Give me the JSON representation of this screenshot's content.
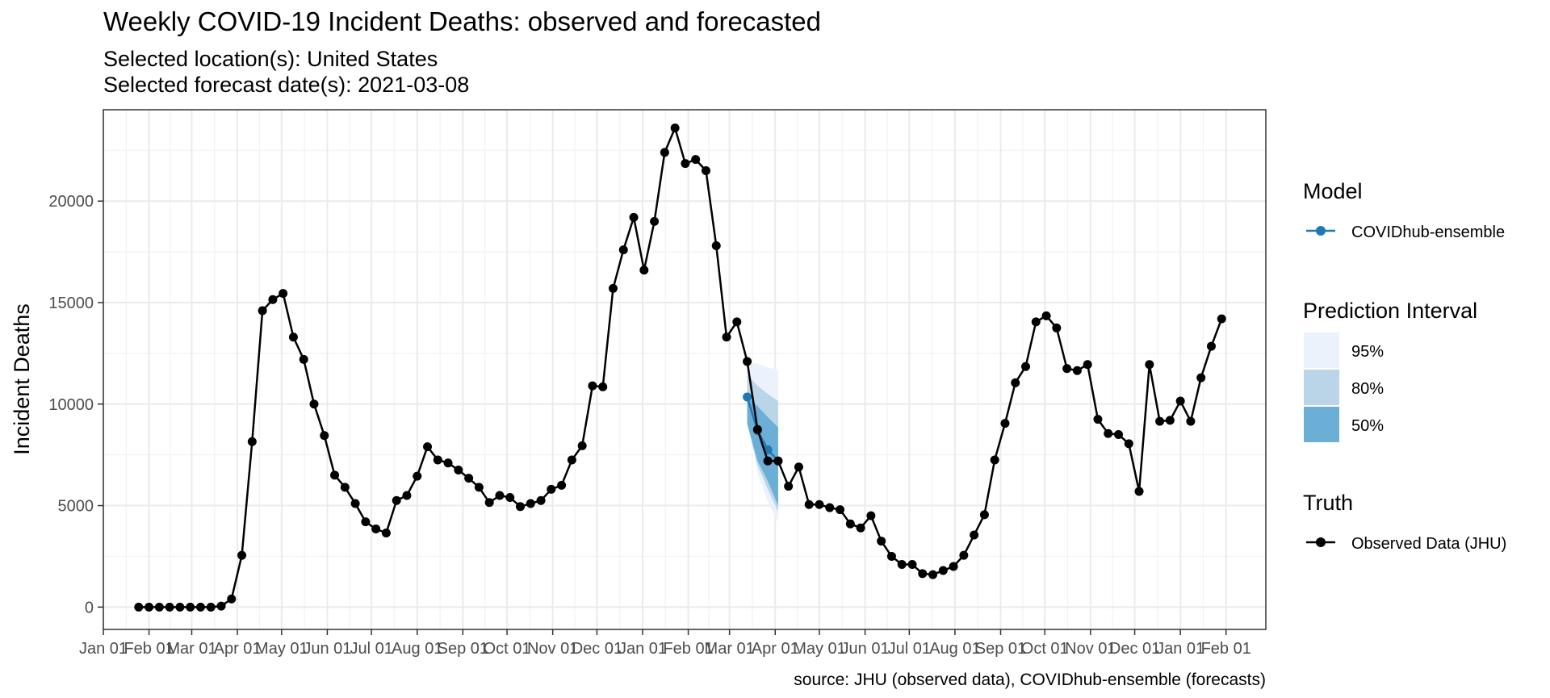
{
  "chart_data": {
    "type": "line",
    "title": "Weekly COVID-19 Incident Deaths: observed and forecasted",
    "subtitle_location": "Selected location(s): United States",
    "subtitle_date": "Selected forecast date(s): 2021-03-08",
    "ylabel": "Incident Deaths",
    "xlabel": "",
    "caption": "source: JHU (observed data), COVIDhub-ensemble (forecasts)",
    "x_range": [
      "2020-01-01",
      "2022-02-28"
    ],
    "ylim": [
      -1100,
      24500
    ],
    "y_ticks": [
      0,
      5000,
      10000,
      15000,
      20000
    ],
    "x_ticks": [
      {
        "date": "2020-01-01",
        "label": "Jan 01"
      },
      {
        "date": "2020-02-01",
        "label": "Feb 01"
      },
      {
        "date": "2020-03-01",
        "label": "Mar 01"
      },
      {
        "date": "2020-04-01",
        "label": "Apr 01"
      },
      {
        "date": "2020-05-01",
        "label": "May 01"
      },
      {
        "date": "2020-06-01",
        "label": "Jun 01"
      },
      {
        "date": "2020-07-01",
        "label": "Jul 01"
      },
      {
        "date": "2020-08-01",
        "label": "Aug 01"
      },
      {
        "date": "2020-09-01",
        "label": "Sep 01"
      },
      {
        "date": "2020-10-01",
        "label": "Oct 01"
      },
      {
        "date": "2020-11-01",
        "label": "Nov 01"
      },
      {
        "date": "2020-12-01",
        "label": "Dec 01"
      },
      {
        "date": "2021-01-01",
        "label": "Jan 01"
      },
      {
        "date": "2021-02-01",
        "label": "Feb 01"
      },
      {
        "date": "2021-03-01",
        "label": "Mar 01"
      },
      {
        "date": "2021-04-01",
        "label": "Apr 01"
      },
      {
        "date": "2021-05-01",
        "label": "May 01"
      },
      {
        "date": "2021-06-01",
        "label": "Jun 01"
      },
      {
        "date": "2021-07-01",
        "label": "Jul 01"
      },
      {
        "date": "2021-08-01",
        "label": "Aug 01"
      },
      {
        "date": "2021-09-01",
        "label": "Sep 01"
      },
      {
        "date": "2021-10-01",
        "label": "Oct 01"
      },
      {
        "date": "2021-11-01",
        "label": "Nov 01"
      },
      {
        "date": "2021-12-01",
        "label": "Dec 01"
      },
      {
        "date": "2022-01-01",
        "label": "Jan 01"
      },
      {
        "date": "2022-02-01",
        "label": "Feb 01"
      }
    ],
    "grid": true,
    "legend_position": "right",
    "legend": {
      "model_title": "Model",
      "model_label": "COVIDhub-ensemble",
      "interval_title": "Prediction Interval",
      "interval_labels": [
        "95%",
        "80%",
        "50%"
      ],
      "truth_title": "Truth",
      "truth_label": "Observed Data (JHU)"
    },
    "colors": {
      "truth": "#000000",
      "forecast": "#1f78b4",
      "pi95": "#ebf2fc",
      "pi80": "#b9d5e7",
      "pi50": "#6baed6"
    },
    "series": [
      {
        "name": "Observed Data (JHU)",
        "start_date": "2020-01-25",
        "step_days": 7,
        "values": [
          0,
          0,
          0,
          0,
          0,
          0,
          0,
          0,
          50,
          400,
          2550,
          8150,
          14600,
          15150,
          15450,
          13300,
          12200,
          10000,
          8450,
          6500,
          5900,
          5100,
          4200,
          3850,
          3650,
          5250,
          5500,
          6450,
          7900,
          7250,
          7100,
          6750,
          6350,
          5900,
          5150,
          5500,
          5400,
          4950,
          5100,
          5250,
          5800,
          6000,
          7250,
          7950,
          10900,
          10850,
          15700,
          17600,
          19200,
          16600,
          19000,
          22400,
          23600,
          21850,
          22050,
          21500,
          17800,
          13300,
          14050,
          12100,
          8750,
          7200,
          7200,
          5950,
          6900,
          5050,
          5050,
          4900,
          4800,
          4100,
          3900,
          4500,
          3250,
          2500,
          2100,
          2100,
          1650,
          1600,
          1800,
          2000,
          2550,
          3550,
          4550,
          7250,
          9050,
          11050,
          11850,
          14050,
          14350,
          13750,
          11750,
          11650,
          11950,
          9250,
          8550,
          8500,
          8050,
          5700,
          11950,
          9150,
          9200,
          10150,
          9150,
          11300,
          12850,
          14200
        ]
      },
      {
        "name": "COVIDhub-ensemble",
        "dates": [
          "2021-03-13",
          "2021-03-20",
          "2021-03-27",
          "2021-04-03"
        ],
        "values": [
          10350,
          8700,
          7750,
          7200
        ],
        "pi95": {
          "lower": [
            9700,
            6600,
            5200,
            4200
          ],
          "upper": [
            12050,
            12000,
            11800,
            11700
          ]
        },
        "pi80": {
          "lower": [
            9000,
            7000,
            5800,
            4700
          ],
          "upper": [
            11450,
            10900,
            10500,
            10150
          ]
        },
        "pi50": {
          "lower": [
            9050,
            7200,
            6200,
            5000
          ],
          "upper": [
            10350,
            9900,
            9350,
            8850
          ]
        }
      }
    ]
  }
}
